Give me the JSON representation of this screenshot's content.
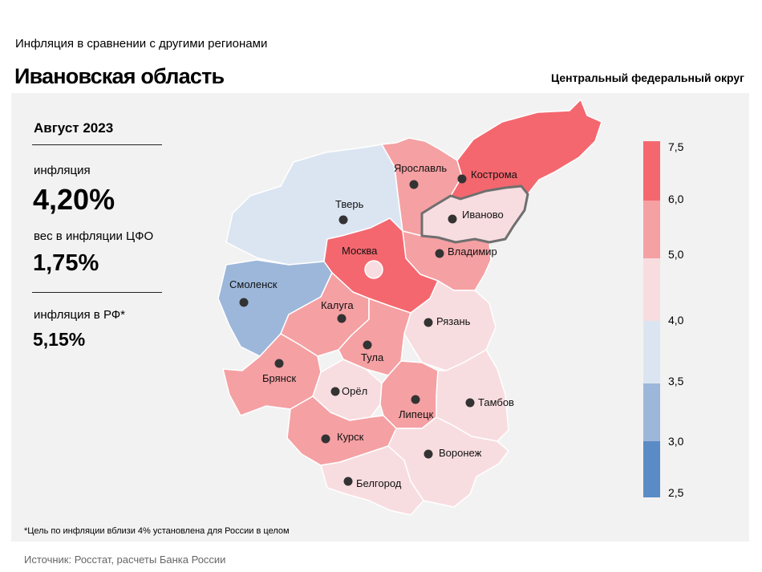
{
  "header": {
    "supertitle": "Инфляция  в сравнении  с другими  регионами",
    "title": "Ивановская область",
    "district": "Центральный федеральный округ"
  },
  "stats": {
    "period": "Август 2023",
    "inflation_label": "инфляция",
    "inflation_value": "4,20%",
    "weight_label": "вес в инфляции  ЦФО",
    "weight_value": "1,75%",
    "rf_label": "инфляция  в РФ*",
    "rf_value": "5,15%"
  },
  "colors": {
    "band_6_0_7_5": "#f4676e",
    "band_5_0_6_0": "#f5a0a3",
    "band_4_0_5_0": "#f8dde0",
    "band_3_5_4_0": "#dbe5f2",
    "band_3_0_3_5": "#9cb7da",
    "band_2_5_3_0": "#5a8bc6",
    "highlight": "#f8dde0"
  },
  "legend": {
    "ticks": [
      "7,5",
      "6,0",
      "5,0",
      "4,0",
      "3,5",
      "3,0",
      "2,5"
    ]
  },
  "regions": [
    {
      "name": "Тверь",
      "band": "band_3_5_4_0"
    },
    {
      "name": "Ярославль",
      "band": "band_5_0_6_0"
    },
    {
      "name": "Кострома",
      "band": "band_6_0_7_5"
    },
    {
      "name": "Иваново",
      "band": "highlight",
      "selected": true
    },
    {
      "name": "Москва",
      "band": "band_6_0_7_5"
    },
    {
      "name": "Владимир",
      "band": "band_5_0_6_0"
    },
    {
      "name": "Смоленск",
      "band": "band_3_0_3_5"
    },
    {
      "name": "Калуга",
      "band": "band_5_0_6_0"
    },
    {
      "name": "Тула",
      "band": "band_5_0_6_0"
    },
    {
      "name": "Рязань",
      "band": "band_4_0_5_0"
    },
    {
      "name": "Брянск",
      "band": "band_5_0_6_0"
    },
    {
      "name": "Орёл",
      "band": "band_4_0_5_0"
    },
    {
      "name": "Липецк",
      "band": "band_5_0_6_0"
    },
    {
      "name": "Тамбов",
      "band": "band_4_0_5_0"
    },
    {
      "name": "Курск",
      "band": "band_5_0_6_0"
    },
    {
      "name": "Воронеж",
      "band": "band_4_0_5_0"
    },
    {
      "name": "Белгород",
      "band": "band_4_0_5_0"
    }
  ],
  "footnote": "*Цель по инфляции вблизи 4% установлена для России в целом",
  "source": "Источник: Росстат, расчеты Банка России"
}
